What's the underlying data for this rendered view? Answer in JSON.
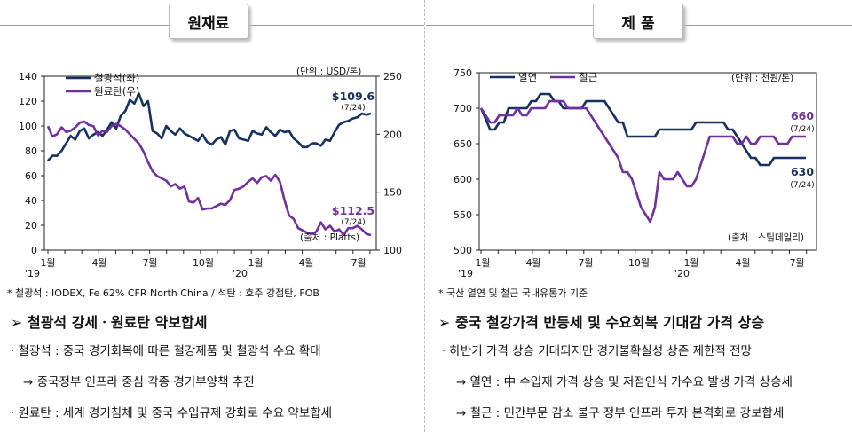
{
  "left": {
    "header": "원재료",
    "chart_data": {
      "type": "line",
      "x_ticks": [
        "1월",
        "4월",
        "7월",
        "10월",
        "1월",
        "4월",
        "7월"
      ],
      "x_prefix_1": "'19",
      "x_prefix_2": "'20",
      "series": [
        {
          "name": "철광석(좌)",
          "axis": "left",
          "color": "#16305f",
          "values": [
            72,
            76,
            76,
            80,
            86,
            92,
            89,
            96,
            98,
            90,
            93,
            95,
            92,
            97,
            103,
            98,
            108,
            112,
            121,
            118,
            126,
            116,
            120,
            96,
            94,
            90,
            100,
            96,
            93,
            98,
            94,
            92,
            90,
            88,
            93,
            87,
            85,
            89,
            91,
            85,
            96,
            97,
            90,
            89,
            88,
            96,
            94,
            93,
            99,
            95,
            92,
            97,
            95,
            96,
            90,
            87,
            83,
            83,
            86,
            86,
            84,
            89,
            88,
            95,
            101,
            103,
            104,
            106,
            107,
            110,
            109,
            110
          ]
        },
        {
          "name": "원료탄(우)",
          "axis": "right",
          "color": "#7030a0",
          "values": [
            207,
            198,
            200,
            206,
            202,
            203,
            206,
            210,
            211,
            208,
            207,
            199,
            203,
            202,
            207,
            209,
            207,
            204,
            200,
            196,
            192,
            185,
            176,
            168,
            164,
            162,
            160,
            155,
            157,
            153,
            155,
            142,
            141,
            145,
            135,
            136,
            136,
            138,
            140,
            139,
            143,
            152,
            153,
            155,
            159,
            162,
            158,
            163,
            164,
            160,
            165,
            159,
            143,
            130,
            127,
            119,
            117,
            115,
            114,
            116,
            124,
            118,
            121,
            116,
            118,
            113,
            119,
            119,
            121,
            118,
            114,
            113
          ]
        }
      ],
      "left_axis": {
        "min": 0,
        "max": 140,
        "ticks": [
          0,
          20,
          40,
          60,
          80,
          100,
          120,
          140
        ]
      },
      "right_axis": {
        "min": 100,
        "max": 250,
        "ticks": [
          100,
          150,
          200,
          250
        ]
      },
      "unit": "(단위 : USD/톤)",
      "source": "(출처 : Platts)",
      "annotations": [
        {
          "value": "$109.6",
          "date": "(7/24)",
          "color": "#16305f"
        },
        {
          "value": "$112.5",
          "date": "(7/24)",
          "color": "#7030a0"
        }
      ]
    },
    "note": "* 철광석 : IODEX, Fe 62% CFR North China / 석탄 : 호주 강점탄, FOB",
    "heading": "➢ 철광석 강세ㆍ원료탄 약보합세",
    "bullets": [
      "ㆍ철광석 : 중국 경기회복에 따른 철강제품 및 철광석 수요 확대",
      "→ 중국정부 인프라 중심 각종 경기부양책 추진",
      "ㆍ원료탄 : 세계 경기침체 및 중국 수입규제 강화로 수요 약보합세"
    ]
  },
  "right": {
    "header": "제 품",
    "chart_data": {
      "type": "line",
      "x_ticks": [
        "1월",
        "4월",
        "7월",
        "10월",
        "1월",
        "4월",
        "7월"
      ],
      "x_prefix_1": "'19",
      "x_prefix_2": "'20",
      "series": [
        {
          "name": "열연",
          "color": "#16305f",
          "values": [
            700,
            685,
            670,
            670,
            680,
            680,
            700,
            700,
            700,
            700,
            700,
            710,
            710,
            720,
            720,
            720,
            710,
            710,
            700,
            700,
            700,
            700,
            700,
            710,
            710,
            710,
            710,
            710,
            700,
            690,
            680,
            680,
            660,
            660,
            660,
            660,
            660,
            660,
            660,
            670,
            670,
            670,
            670,
            670,
            670,
            670,
            670,
            680,
            680,
            680,
            680,
            680,
            680,
            680,
            670,
            670,
            660,
            650,
            640,
            630,
            630,
            620,
            620,
            620,
            630,
            630,
            630,
            630,
            630,
            630,
            630,
            630
          ]
        },
        {
          "name": "철근",
          "color": "#7030a0",
          "values": [
            700,
            690,
            680,
            680,
            690,
            690,
            690,
            690,
            700,
            690,
            690,
            700,
            700,
            700,
            700,
            710,
            710,
            710,
            710,
            700,
            700,
            700,
            700,
            700,
            690,
            680,
            670,
            660,
            650,
            640,
            630,
            610,
            610,
            600,
            580,
            560,
            550,
            540,
            560,
            610,
            600,
            600,
            600,
            610,
            600,
            590,
            590,
            600,
            620,
            640,
            660,
            660,
            660,
            660,
            660,
            660,
            650,
            650,
            660,
            650,
            650,
            660,
            660,
            660,
            660,
            650,
            650,
            650,
            660,
            660,
            660,
            660
          ]
        }
      ],
      "y_axis": {
        "min": 500,
        "max": 750,
        "ticks": [
          500,
          550,
          600,
          650,
          700,
          750
        ]
      },
      "unit": "(단위 : 천원/톤)",
      "source": "(출처 : 스틸데일리)",
      "annotations": [
        {
          "value": "660",
          "date": "(7/24)",
          "color": "#7030a0"
        },
        {
          "value": "630",
          "date": "(7/24)",
          "color": "#16305f"
        }
      ]
    },
    "note": "* 국산 열연 및 철근 국내유통가 기준",
    "heading": "➢ 중국 철강가격 반등세 및 수요회복 기대감 가격 상승",
    "bullets": [
      "ㆍ하반기 가격 상승 기대되지만 경기불확실성 상존 제한적 전망",
      "→ 열연 : 中 수입재 가격 상승 및 저점인식 가수요 발생 가격 상승세",
      "→ 철근 : 민간부문 감소 불구 정부 인프라 투자 본격화로 강보합세"
    ]
  }
}
